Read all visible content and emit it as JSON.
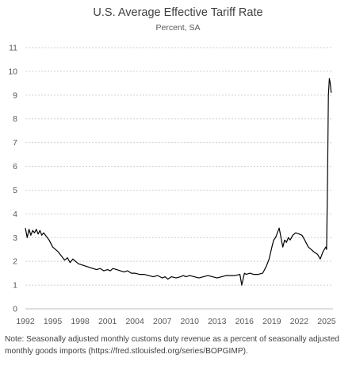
{
  "chart_data": {
    "type": "line",
    "title": "U.S. Average Effective Tariff Rate",
    "subtitle": "Percent, SA",
    "xlabel": "",
    "ylabel": "",
    "xlim": [
      1992,
      2025.7
    ],
    "ylim": [
      0,
      11
    ],
    "yticks": [
      0,
      1,
      2,
      3,
      4,
      5,
      6,
      7,
      8,
      9,
      10,
      11
    ],
    "xticks": [
      1992,
      1995,
      1998,
      2001,
      2004,
      2007,
      2010,
      2013,
      2016,
      2019,
      2022,
      2025
    ],
    "grid": "horizontal dotted",
    "legend": "none",
    "line_color": "#000000",
    "series": [
      {
        "x": [
          1992.0,
          1992.2,
          1992.4,
          1992.6,
          1992.8,
          1993.0,
          1993.2,
          1993.4,
          1993.6,
          1993.8,
          1994.0,
          1994.3,
          1994.6,
          1995.0,
          1995.3,
          1995.6,
          1996.0,
          1996.3,
          1996.6,
          1996.9,
          1997.2,
          1997.5,
          1997.8,
          1998.2,
          1998.6,
          1999.0,
          1999.4,
          1999.8,
          2000.2,
          2000.6,
          2001.0,
          2001.3,
          2001.6,
          2002.0,
          2002.4,
          2002.8,
          2003.2,
          2003.6,
          2004.0,
          2004.5,
          2005.0,
          2005.5,
          2006.0,
          2006.5,
          2007.0,
          2007.3,
          2007.6,
          2008.0,
          2008.5,
          2009.0,
          2009.3,
          2009.6,
          2010.0,
          2010.5,
          2011.0,
          2011.5,
          2012.0,
          2012.5,
          2013.0,
          2013.5,
          2014.0,
          2014.5,
          2015.0,
          2015.5,
          2015.7,
          2016.0,
          2016.2,
          2016.6,
          2017.0,
          2017.5,
          2018.0,
          2018.4,
          2018.7,
          2019.0,
          2019.2,
          2019.4,
          2019.6,
          2019.8,
          2020.0,
          2020.2,
          2020.4,
          2020.6,
          2020.8,
          2021.0,
          2021.3,
          2021.6,
          2022.0,
          2022.3,
          2022.6,
          2023.0,
          2023.3,
          2023.6,
          2024.0,
          2024.3,
          2024.6,
          2024.9,
          2025.0,
          2025.1,
          2025.2,
          2025.3,
          2025.4,
          2025.5
        ],
        "y": [
          3.4,
          3.0,
          3.35,
          3.1,
          3.3,
          3.2,
          3.35,
          3.15,
          3.3,
          3.1,
          3.2,
          3.05,
          2.9,
          2.6,
          2.5,
          2.4,
          2.2,
          2.05,
          2.15,
          1.95,
          2.1,
          2.0,
          1.9,
          1.85,
          1.8,
          1.75,
          1.7,
          1.65,
          1.7,
          1.6,
          1.65,
          1.6,
          1.7,
          1.65,
          1.6,
          1.55,
          1.6,
          1.5,
          1.5,
          1.45,
          1.45,
          1.4,
          1.35,
          1.4,
          1.3,
          1.35,
          1.25,
          1.35,
          1.3,
          1.35,
          1.4,
          1.35,
          1.4,
          1.35,
          1.3,
          1.35,
          1.4,
          1.35,
          1.3,
          1.35,
          1.4,
          1.4,
          1.4,
          1.45,
          1.0,
          1.5,
          1.45,
          1.5,
          1.45,
          1.45,
          1.5,
          1.8,
          2.1,
          2.6,
          2.9,
          3.0,
          3.2,
          3.4,
          3.0,
          2.6,
          2.9,
          2.8,
          3.0,
          2.9,
          3.1,
          3.2,
          3.15,
          3.1,
          2.9,
          2.6,
          2.5,
          2.4,
          2.3,
          2.1,
          2.4,
          2.6,
          2.5,
          5.5,
          9.0,
          9.7,
          9.5,
          9.1
        ]
      }
    ],
    "note": "Note: Seasonally adjusted monthly customs duty revenue as a percent of seasonally adjusted monthly goods imports (https://fred.stlouisfed.org/series/BOPGIMP)."
  }
}
